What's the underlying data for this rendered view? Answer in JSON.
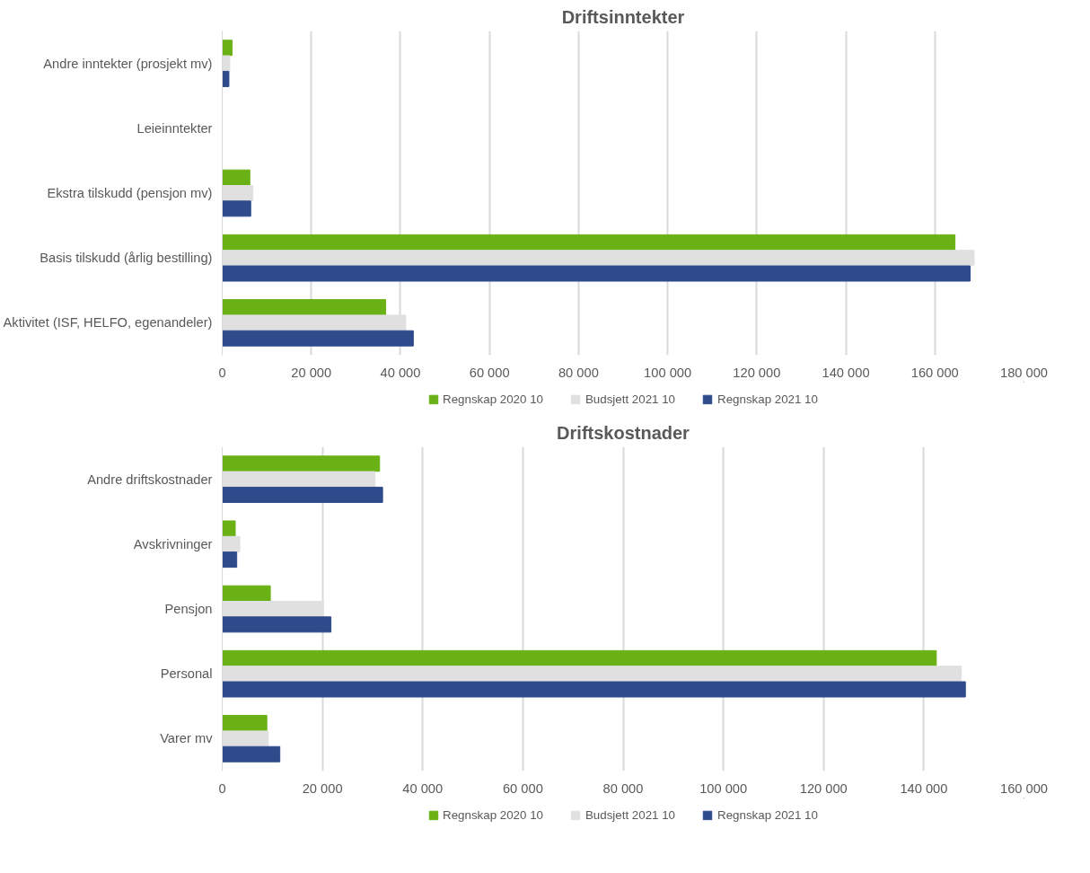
{
  "chart_data": [
    {
      "type": "bar",
      "orientation": "horizontal",
      "title": "Driftsinntekter",
      "categories": [
        "Andre inntekter (prosjekt mv)",
        "Leieinntekter",
        "Ekstra tilskudd (pensjon mv)",
        "Basis tilskudd (årlig bestilling)",
        "Aktivitet (ISF, HELFO, egenandeler)"
      ],
      "series": [
        {
          "name": "Regnskap 2020 10",
          "color": "#6ab115",
          "values": [
            2200,
            0,
            6200,
            164500,
            36700
          ]
        },
        {
          "name": "Budsjett 2021 10",
          "color": "#e0e0e0",
          "values": [
            1700,
            0,
            6900,
            168800,
            41200
          ]
        },
        {
          "name": "Regnskap 2021 10",
          "color": "#2e4b8b",
          "values": [
            1500,
            0,
            6400,
            167900,
            42900
          ]
        }
      ],
      "xlim": [
        0,
        180000
      ],
      "xticks": [
        0,
        {
          "value": 20000,
          "label": "20 000"
        },
        {
          "value": 40000,
          "label": "40 000"
        },
        {
          "value": 60000,
          "label": "60 000"
        },
        {
          "value": 80000,
          "label": "80 000"
        },
        {
          "value": 100000,
          "label": "100 000"
        },
        {
          "value": 120000,
          "label": "120 000"
        },
        {
          "value": 140000,
          "label": "140 000"
        },
        {
          "value": 160000,
          "label": "160 000"
        },
        {
          "value": 180000,
          "label": "180 000"
        }
      ],
      "grid": "x",
      "legend": "bottom"
    },
    {
      "type": "bar",
      "orientation": "horizontal",
      "title": "Driftskostnader",
      "categories": [
        "Andre driftskostnader",
        "Avskrivninger",
        "Pensjon",
        "Personal",
        "Varer mv"
      ],
      "series": [
        {
          "name": "Regnskap 2020 10",
          "color": "#6ab115",
          "values": [
            31400,
            2600,
            9600,
            142500,
            8900
          ]
        },
        {
          "name": "Budsjett 2021 10",
          "color": "#e0e0e0",
          "values": [
            30500,
            3500,
            20200,
            147500,
            9200
          ]
        },
        {
          "name": "Regnskap 2021 10",
          "color": "#2e4b8b",
          "values": [
            32000,
            2900,
            21700,
            148300,
            11500
          ]
        }
      ],
      "xlim": [
        0,
        160000
      ],
      "xticks": [
        0,
        {
          "value": 20000,
          "label": "20 000"
        },
        {
          "value": 40000,
          "label": "40 000"
        },
        {
          "value": 60000,
          "label": "60 000"
        },
        {
          "value": 80000,
          "label": "80 000"
        },
        {
          "value": 100000,
          "label": "100 000"
        },
        {
          "value": 120000,
          "label": "120 000"
        },
        {
          "value": 140000,
          "label": "140 000"
        },
        {
          "value": 160000,
          "label": "160 000"
        }
      ],
      "grid": "x",
      "legend": "bottom"
    }
  ]
}
